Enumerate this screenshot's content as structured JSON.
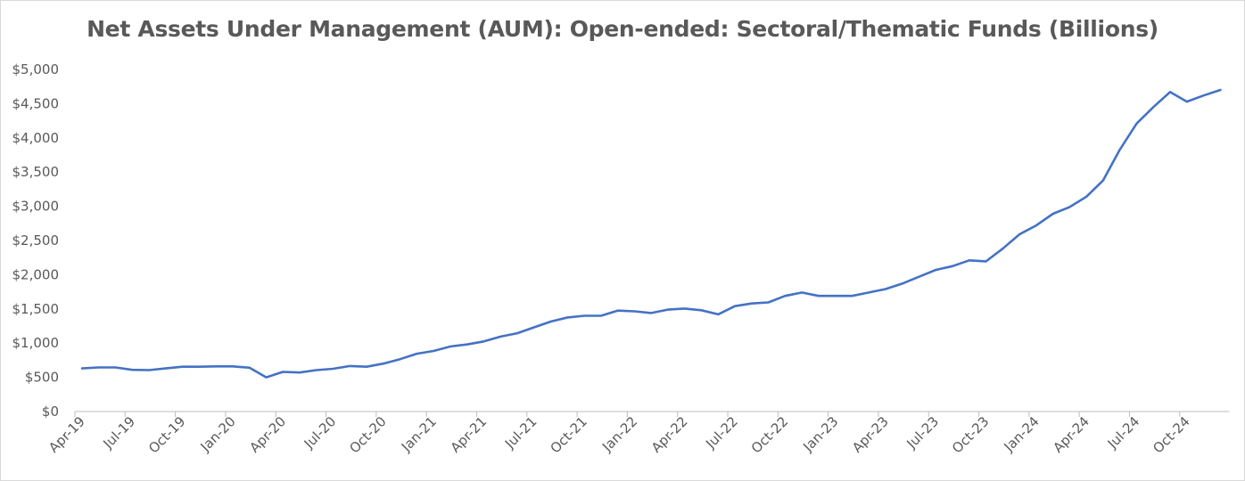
{
  "chart_data": {
    "type": "line",
    "title": "Net Assets Under Management (AUM): Open-ended: Sectoral/Thematic Funds (Billions)",
    "xlabel": "",
    "ylabel": "",
    "ylim": [
      0,
      5000
    ],
    "yticks": [
      "$0",
      "$500",
      "$1,000",
      "$1,500",
      "$2,000",
      "$2,500",
      "$3,000",
      "$3,500",
      "$4,000",
      "$4,500",
      "$5,000"
    ],
    "xtick_labels": [
      "Apr-19",
      "Jul-19",
      "Oct-19",
      "Jan-20",
      "Apr-20",
      "Jul-20",
      "Oct-20",
      "Jan-21",
      "Apr-21",
      "Jul-21",
      "Oct-21",
      "Jan-22",
      "Apr-22",
      "Jul-22",
      "Oct-22",
      "Jan-23",
      "Apr-23",
      "Jul-23",
      "Oct-23",
      "Jan-24",
      "Apr-24",
      "Jul-24",
      "Oct-24"
    ],
    "grid": false,
    "legend": "none",
    "line_color": "#4472c4",
    "series": [
      {
        "x": [
          "Apr-19",
          "May-19",
          "Jun-19",
          "Jul-19",
          "Aug-19",
          "Sep-19",
          "Oct-19",
          "Nov-19",
          "Dec-19",
          "Jan-20",
          "Feb-20",
          "Mar-20",
          "Apr-20",
          "May-20",
          "Jun-20",
          "Jul-20",
          "Aug-20",
          "Sep-20",
          "Oct-20",
          "Nov-20",
          "Dec-20",
          "Jan-21",
          "Feb-21",
          "Mar-21",
          "Apr-21",
          "May-21",
          "Jun-21",
          "Jul-21",
          "Aug-21",
          "Sep-21",
          "Oct-21",
          "Nov-21",
          "Dec-21",
          "Jan-22",
          "Feb-22",
          "Mar-22",
          "Apr-22",
          "May-22",
          "Jun-22",
          "Jul-22",
          "Aug-22",
          "Sep-22",
          "Oct-22",
          "Nov-22",
          "Dec-22",
          "Jan-23",
          "Feb-23",
          "Mar-23",
          "Apr-23",
          "May-23",
          "Jun-23",
          "Jul-23",
          "Aug-23",
          "Sep-23",
          "Oct-23",
          "Nov-23",
          "Dec-23",
          "Jan-24",
          "Feb-24",
          "Mar-24",
          "Apr-24",
          "May-24",
          "Jun-24",
          "Jul-24",
          "Aug-24",
          "Sep-24",
          "Oct-24",
          "Nov-24",
          "Dec-24"
        ],
        "values": [
          630,
          645,
          645,
          610,
          605,
          630,
          655,
          655,
          660,
          660,
          640,
          500,
          580,
          570,
          605,
          625,
          665,
          655,
          700,
          765,
          845,
          885,
          950,
          980,
          1025,
          1095,
          1145,
          1230,
          1315,
          1375,
          1400,
          1400,
          1475,
          1465,
          1440,
          1490,
          1505,
          1480,
          1420,
          1540,
          1580,
          1595,
          1690,
          1740,
          1690,
          1690,
          1690,
          1740,
          1790,
          1870,
          1970,
          2070,
          2125,
          2210,
          2195,
          2380,
          2590,
          2720,
          2890,
          2990,
          3140,
          3380,
          3830,
          4210,
          4450,
          4670,
          4530,
          4620,
          4700
        ]
      }
    ]
  }
}
